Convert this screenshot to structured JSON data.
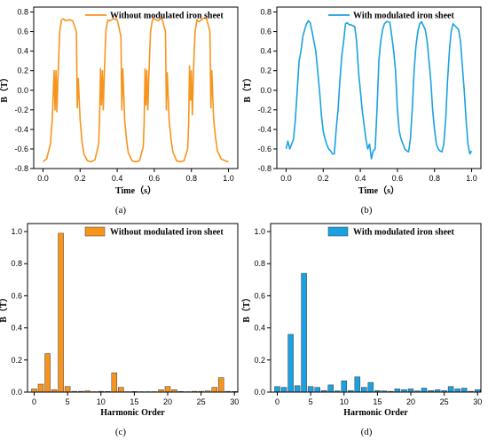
{
  "colors": {
    "orange": "#f7941d",
    "blue": "#1ba1e2"
  },
  "chart_data": [
    {
      "id": "a",
      "type": "line",
      "caption": "(a)",
      "xlabel": "Time（s）",
      "ylabel": "B（T）",
      "xlim": [
        -0.05,
        1.05
      ],
      "ylim": [
        -0.8,
        0.85
      ],
      "xticks": [
        "0.0",
        "0.2",
        "0.4",
        "0.6",
        "0.8",
        "1.0"
      ],
      "xtick_values": [
        0,
        0.2,
        0.4,
        0.6,
        0.8,
        1.0
      ],
      "yticks": [
        "-0.8",
        "-0.6",
        "-0.4",
        "-0.2",
        "0.0",
        "0.2",
        "0.4",
        "0.6",
        "0.8"
      ],
      "ytick_values": [
        -0.8,
        -0.6,
        -0.4,
        -0.2,
        0,
        0.2,
        0.4,
        0.6,
        0.8
      ],
      "legend_position": "top-right",
      "series": [
        {
          "name": "Without modulated iron sheet",
          "color": "#f7941d",
          "x": [
            0.0,
            0.02,
            0.04,
            0.05,
            0.06,
            0.065,
            0.07,
            0.075,
            0.08,
            0.085,
            0.09,
            0.1,
            0.11,
            0.12,
            0.14,
            0.16,
            0.18,
            0.185,
            0.19,
            0.2,
            0.21,
            0.22,
            0.24,
            0.26,
            0.28,
            0.3,
            0.305,
            0.31,
            0.315,
            0.32,
            0.325,
            0.33,
            0.335,
            0.34,
            0.35,
            0.36,
            0.38,
            0.4,
            0.42,
            0.425,
            0.43,
            0.44,
            0.45,
            0.46,
            0.48,
            0.5,
            0.52,
            0.54,
            0.545,
            0.55,
            0.555,
            0.56,
            0.565,
            0.57,
            0.575,
            0.58,
            0.59,
            0.6,
            0.62,
            0.64,
            0.66,
            0.665,
            0.67,
            0.68,
            0.69,
            0.7,
            0.72,
            0.74,
            0.76,
            0.78,
            0.785,
            0.79,
            0.795,
            0.8,
            0.805,
            0.81,
            0.815,
            0.82,
            0.83,
            0.84,
            0.86,
            0.88,
            0.9,
            0.905,
            0.91,
            0.92,
            0.93,
            0.94,
            0.96,
            0.98,
            1.0
          ],
          "y": [
            -0.73,
            -0.7,
            -0.55,
            -0.3,
            0.2,
            -0.2,
            0.2,
            -0.22,
            0.1,
            0.35,
            0.6,
            0.72,
            0.73,
            0.71,
            0.72,
            0.71,
            0.6,
            -0.18,
            0.12,
            -0.3,
            -0.52,
            -0.65,
            -0.72,
            -0.73,
            -0.71,
            -0.55,
            -0.3,
            0.22,
            -0.15,
            0.2,
            -0.2,
            0.15,
            0.4,
            0.62,
            0.72,
            0.71,
            0.73,
            0.72,
            0.55,
            -0.2,
            0.22,
            -0.3,
            -0.5,
            -0.64,
            -0.72,
            -0.73,
            -0.72,
            -0.58,
            -0.35,
            0.22,
            -0.15,
            0.2,
            -0.2,
            0.1,
            0.38,
            0.6,
            0.72,
            0.73,
            0.71,
            0.74,
            0.6,
            -0.2,
            0.18,
            -0.3,
            -0.5,
            -0.63,
            -0.72,
            -0.73,
            -0.72,
            -0.6,
            -0.35,
            0.25,
            -0.1,
            0.2,
            -0.25,
            0.1,
            0.4,
            0.6,
            0.72,
            0.7,
            0.73,
            0.74,
            0.6,
            -0.18,
            0.2,
            -0.3,
            -0.48,
            -0.62,
            -0.7,
            -0.72,
            -0.73
          ]
        }
      ]
    },
    {
      "id": "b",
      "type": "line",
      "caption": "(b)",
      "xlabel": "Time（s）",
      "ylabel": "B（T）",
      "xlim": [
        -0.05,
        1.05
      ],
      "ylim": [
        -0.8,
        0.85
      ],
      "xticks": [
        "0.0",
        "0.2",
        "0.4",
        "0.6",
        "0.8",
        "1.0"
      ],
      "xtick_values": [
        0,
        0.2,
        0.4,
        0.6,
        0.8,
        1.0
      ],
      "yticks": [
        "-0.8",
        "-0.6",
        "-0.4",
        "-0.2",
        "0.0",
        "0.2",
        "0.4",
        "0.6",
        "0.8"
      ],
      "ytick_values": [
        -0.8,
        -0.6,
        -0.4,
        -0.2,
        0,
        0.2,
        0.4,
        0.6,
        0.8
      ],
      "legend_position": "top-right",
      "series": [
        {
          "name": "With modulated iron sheet",
          "color": "#1ba1e2",
          "x": [
            0.0,
            0.01,
            0.02,
            0.03,
            0.04,
            0.05,
            0.06,
            0.07,
            0.08,
            0.09,
            0.1,
            0.11,
            0.12,
            0.13,
            0.14,
            0.15,
            0.16,
            0.17,
            0.18,
            0.19,
            0.2,
            0.21,
            0.22,
            0.23,
            0.24,
            0.25,
            0.26,
            0.27,
            0.28,
            0.29,
            0.3,
            0.31,
            0.32,
            0.33,
            0.34,
            0.35,
            0.36,
            0.37,
            0.38,
            0.39,
            0.4,
            0.41,
            0.42,
            0.43,
            0.44,
            0.45,
            0.46,
            0.47,
            0.48,
            0.49,
            0.5,
            0.51,
            0.52,
            0.53,
            0.54,
            0.55,
            0.56,
            0.57,
            0.58,
            0.59,
            0.6,
            0.61,
            0.62,
            0.63,
            0.64,
            0.65,
            0.66,
            0.67,
            0.68,
            0.69,
            0.7,
            0.71,
            0.72,
            0.73,
            0.74,
            0.75,
            0.76,
            0.77,
            0.78,
            0.79,
            0.8,
            0.81,
            0.82,
            0.83,
            0.84,
            0.85,
            0.86,
            0.87,
            0.88,
            0.89,
            0.9,
            0.91,
            0.92,
            0.93,
            0.94,
            0.95,
            0.96,
            0.97,
            0.98,
            0.99,
            1.0
          ],
          "y": [
            -0.6,
            -0.52,
            -0.6,
            -0.55,
            -0.5,
            -0.3,
            0.0,
            0.3,
            0.4,
            0.55,
            0.62,
            0.68,
            0.71,
            0.69,
            0.6,
            0.5,
            0.4,
            0.2,
            0.0,
            -0.25,
            -0.42,
            -0.5,
            -0.56,
            -0.6,
            -0.62,
            -0.65,
            -0.65,
            -0.4,
            -0.2,
            0.1,
            0.35,
            0.5,
            0.68,
            0.69,
            0.67,
            0.67,
            0.66,
            0.65,
            0.5,
            0.2,
            0.0,
            -0.2,
            -0.35,
            -0.5,
            -0.6,
            -0.55,
            -0.7,
            -0.62,
            -0.6,
            -0.2,
            0.3,
            0.5,
            0.62,
            0.68,
            0.7,
            0.7,
            0.69,
            0.55,
            0.4,
            0.2,
            -0.2,
            -0.42,
            -0.5,
            -0.55,
            -0.6,
            -0.62,
            -0.63,
            -0.5,
            -0.2,
            0.2,
            0.45,
            0.6,
            0.68,
            0.7,
            0.66,
            0.62,
            0.5,
            0.3,
            0.1,
            -0.2,
            -0.4,
            -0.55,
            -0.6,
            -0.62,
            -0.63,
            -0.55,
            -0.3,
            0.1,
            0.4,
            0.6,
            0.68,
            0.66,
            0.64,
            0.62,
            0.5,
            0.25,
            0.0,
            -0.3,
            -0.55,
            -0.65,
            -0.62
          ]
        }
      ]
    },
    {
      "id": "c",
      "type": "bar",
      "caption": "(c)",
      "xlabel": "Harmonic Order",
      "ylabel": "B（T）",
      "xlim": [
        -1,
        30.5
      ],
      "ylim": [
        0,
        1.05
      ],
      "xticks": [
        "0",
        "5",
        "10",
        "15",
        "20",
        "25",
        "30"
      ],
      "xtick_values": [
        0,
        5,
        10,
        15,
        20,
        25,
        30
      ],
      "yticks": [
        "0.0",
        "0.2",
        "0.4",
        "0.6",
        "0.8",
        "1.0"
      ],
      "ytick_values": [
        0,
        0.2,
        0.4,
        0.6,
        0.8,
        1.0
      ],
      "legend_position": "top-right",
      "series": [
        {
          "name": "Without modulated iron sheet",
          "color": "#f7941d",
          "x": [
            0,
            1,
            2,
            3,
            4,
            5,
            6,
            7,
            8,
            9,
            10,
            11,
            12,
            13,
            14,
            15,
            16,
            17,
            18,
            19,
            20,
            21,
            22,
            23,
            24,
            25,
            26,
            27,
            28,
            29,
            30
          ],
          "values": [
            0.02,
            0.05,
            0.24,
            0.015,
            0.99,
            0.035,
            0.005,
            0.005,
            0.008,
            0.003,
            0.005,
            0.004,
            0.12,
            0.03,
            0.003,
            0.004,
            0.003,
            0.003,
            0.003,
            0.015,
            0.035,
            0.015,
            0.004,
            0.003,
            0.005,
            0.005,
            0.008,
            0.03,
            0.09,
            0.005,
            0.004
          ]
        }
      ]
    },
    {
      "id": "d",
      "type": "bar",
      "caption": "(d)",
      "xlabel": "Harmonic Order",
      "ylabel": "B（T）",
      "xlim": [
        -1,
        30.5
      ],
      "ylim": [
        0,
        1.05
      ],
      "xticks": [
        "0",
        "5",
        "10",
        "15",
        "20",
        "25",
        "30"
      ],
      "xtick_values": [
        0,
        5,
        10,
        15,
        20,
        25,
        30
      ],
      "yticks": [
        "0.0",
        "0.2",
        "0.4",
        "0.6",
        "0.8",
        "1.0"
      ],
      "ytick_values": [
        0,
        0.2,
        0.4,
        0.6,
        0.8,
        1.0
      ],
      "legend_position": "top-right",
      "series": [
        {
          "name": "With modulated iron sheet",
          "color": "#1ba1e2",
          "x": [
            0,
            1,
            2,
            3,
            4,
            5,
            6,
            7,
            8,
            9,
            10,
            11,
            12,
            13,
            14,
            15,
            16,
            17,
            18,
            19,
            20,
            21,
            22,
            23,
            24,
            25,
            26,
            27,
            28,
            29,
            30
          ],
          "values": [
            0.035,
            0.03,
            0.36,
            0.04,
            0.74,
            0.035,
            0.03,
            0.01,
            0.045,
            0.008,
            0.07,
            0.01,
            0.095,
            0.03,
            0.06,
            0.01,
            0.008,
            0.005,
            0.02,
            0.015,
            0.02,
            0.008,
            0.025,
            0.01,
            0.015,
            0.01,
            0.035,
            0.02,
            0.025,
            0.005,
            0.015
          ]
        }
      ]
    }
  ]
}
